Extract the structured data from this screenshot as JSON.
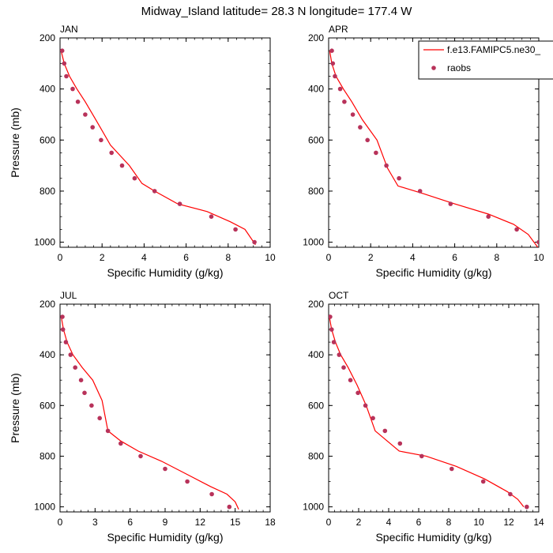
{
  "figure": {
    "title": "Midway_Island  latitude= 28.3 N longitude= 177.4 W"
  },
  "legend": {
    "model_label": "f.e13.FAMIPC5.ne30_",
    "obs_label": "raobs"
  },
  "colors": {
    "model_line": "#ff0000",
    "obs_marker": "#b8325a"
  },
  "chart_data": [
    {
      "type": "line",
      "panel_title": "JAN",
      "xlabel": "Specific Humidity (g/kg)",
      "ylabel": "Pressure (mb)",
      "xlim": [
        0,
        10
      ],
      "ylim": [
        200,
        1020
      ],
      "y_inverted": true,
      "xticks": [
        "0",
        "2",
        "4",
        "6",
        "8",
        "10"
      ],
      "yticks": [
        "200",
        "400",
        "600",
        "800",
        "1000"
      ],
      "series": [
        {
          "name": "f.e13.FAMIPC5.ne30_",
          "style": "line",
          "x": [
            0.05,
            0.2,
            0.45,
            0.8,
            1.2,
            1.7,
            2.4,
            3.3,
            3.9,
            4.5,
            5.6,
            7.0,
            8.1,
            8.8,
            9.3
          ],
          "y": [
            250,
            300,
            350,
            400,
            450,
            520,
            620,
            700,
            770,
            800,
            850,
            880,
            920,
            950,
            1010
          ]
        },
        {
          "name": "raobs",
          "style": "markers",
          "x": [
            0.1,
            0.2,
            0.3,
            0.6,
            0.85,
            1.2,
            1.55,
            1.95,
            2.45,
            2.95,
            3.55,
            4.5,
            5.7,
            7.2,
            8.35,
            9.25
          ],
          "y": [
            250,
            300,
            350,
            400,
            450,
            500,
            550,
            600,
            650,
            700,
            750,
            800,
            850,
            900,
            950,
            1000
          ]
        }
      ]
    },
    {
      "type": "line",
      "panel_title": "APR",
      "xlabel": "Specific Humidity (g/kg)",
      "ylabel": "",
      "xlim": [
        0,
        10
      ],
      "ylim": [
        200,
        1020
      ],
      "y_inverted": true,
      "xticks": [
        "0",
        "2",
        "4",
        "6",
        "8",
        "10"
      ],
      "yticks": [
        "200",
        "400",
        "600",
        "800",
        "1000"
      ],
      "series": [
        {
          "name": "f.e13.FAMIPC5.ne30_",
          "style": "line",
          "x": [
            0.05,
            0.15,
            0.35,
            0.7,
            1.1,
            1.6,
            2.3,
            2.8,
            3.3,
            4.5,
            6.0,
            7.6,
            8.8,
            9.5,
            9.95
          ],
          "y": [
            250,
            300,
            350,
            400,
            450,
            520,
            600,
            710,
            780,
            810,
            850,
            890,
            930,
            970,
            1020
          ]
        },
        {
          "name": "raobs",
          "style": "markers",
          "x": [
            0.15,
            0.2,
            0.3,
            0.55,
            0.75,
            1.15,
            1.5,
            1.85,
            2.25,
            2.75,
            3.35,
            4.35,
            5.8,
            7.6,
            8.95,
            10.0
          ],
          "y": [
            250,
            300,
            350,
            400,
            450,
            500,
            550,
            600,
            650,
            700,
            750,
            800,
            850,
            900,
            950,
            1000
          ]
        }
      ]
    },
    {
      "type": "line",
      "panel_title": "JUL",
      "xlabel": "Specific Humidity (g/kg)",
      "ylabel": "Pressure (mb)",
      "xlim": [
        0,
        18
      ],
      "ylim": [
        200,
        1020
      ],
      "y_inverted": true,
      "xticks": [
        "0",
        "3",
        "6",
        "9",
        "12",
        "15",
        "18"
      ],
      "yticks": [
        "200",
        "400",
        "600",
        "800",
        "1000"
      ],
      "series": [
        {
          "name": "f.e13.FAMIPC5.ne30_",
          "style": "line",
          "x": [
            0.1,
            0.3,
            0.6,
            1.1,
            1.9,
            2.8,
            3.6,
            4.1,
            5.2,
            6.7,
            8.7,
            10.8,
            12.9,
            14.3,
            15.0,
            15.3
          ],
          "y": [
            250,
            300,
            350,
            400,
            450,
            500,
            580,
            700,
            740,
            780,
            820,
            870,
            920,
            950,
            980,
            1010
          ]
        },
        {
          "name": "raobs",
          "style": "markers",
          "x": [
            0.2,
            0.25,
            0.5,
            0.9,
            1.3,
            1.8,
            2.1,
            2.7,
            3.4,
            4.1,
            5.2,
            6.9,
            9.0,
            10.9,
            13.0,
            14.5
          ],
          "y": [
            250,
            300,
            350,
            400,
            450,
            500,
            550,
            600,
            650,
            700,
            750,
            800,
            850,
            900,
            950,
            1000
          ]
        }
      ]
    },
    {
      "type": "line",
      "panel_title": "OCT",
      "xlabel": "Specific Humidity (g/kg)",
      "ylabel": "",
      "xlim": [
        0,
        14
      ],
      "ylim": [
        200,
        1020
      ],
      "y_inverted": true,
      "xticks": [
        "0",
        "2",
        "4",
        "6",
        "8",
        "10",
        "12",
        "14"
      ],
      "yticks": [
        "200",
        "400",
        "600",
        "800",
        "1000"
      ],
      "series": [
        {
          "name": "f.e13.FAMIPC5.ne30_",
          "style": "line",
          "x": [
            0.05,
            0.2,
            0.45,
            0.8,
            1.3,
            1.9,
            2.5,
            3.1,
            4.7,
            6.5,
            8.5,
            10.4,
            11.9,
            12.6,
            13.0
          ],
          "y": [
            250,
            300,
            350,
            400,
            450,
            520,
            600,
            700,
            780,
            800,
            840,
            890,
            940,
            970,
            1000
          ]
        },
        {
          "name": "raobs",
          "style": "markers",
          "x": [
            0.1,
            0.2,
            0.35,
            0.7,
            1.0,
            1.45,
            1.95,
            2.45,
            2.95,
            3.75,
            4.75,
            6.2,
            8.2,
            10.3,
            12.1,
            13.2
          ],
          "y": [
            250,
            300,
            350,
            400,
            450,
            500,
            550,
            600,
            650,
            700,
            750,
            800,
            850,
            900,
            950,
            1000
          ]
        }
      ]
    }
  ]
}
